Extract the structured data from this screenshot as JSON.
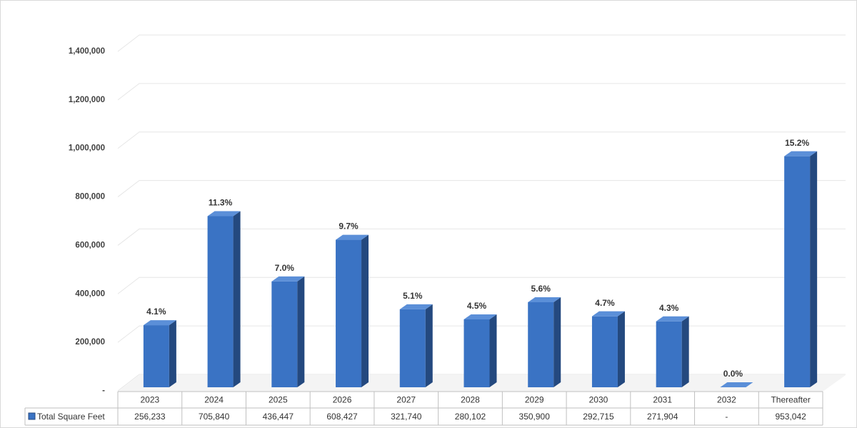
{
  "chart_data": {
    "type": "bar3d",
    "categories": [
      "2023",
      "2024",
      "2025",
      "2026",
      "2027",
      "2028",
      "2029",
      "2030",
      "2031",
      "2032",
      "Thereafter"
    ],
    "series": [
      {
        "name": "Total Square Feet",
        "color": "#3a73c4",
        "values": [
          256233,
          705840,
          436447,
          608427,
          321740,
          280102,
          350900,
          292715,
          271904,
          0,
          953042
        ],
        "value_labels": [
          "256,233",
          "705,840",
          "436,447",
          "608,427",
          "321,740",
          "280,102",
          "350,900",
          "292,715",
          "271,904",
          "-",
          "953,042"
        ]
      }
    ],
    "shares": {
      "values": [
        4.1,
        11.3,
        7.0,
        9.7,
        5.1,
        4.5,
        5.6,
        4.7,
        4.3,
        0.0,
        15.2
      ],
      "value_labels": [
        "4.1%",
        "11.3%",
        "7.0%",
        "9.7%",
        "5.1%",
        "4.5%",
        "5.6%",
        "4.7%",
        "4.3%",
        "0.0%",
        "15.2%"
      ]
    },
    "ylim": [
      0,
      1400000
    ],
    "yticks": [
      {
        "value": 0,
        "label": "-"
      },
      {
        "value": 200000,
        "label": "200,000"
      },
      {
        "value": 400000,
        "label": "400,000"
      },
      {
        "value": 600000,
        "label": "600,000"
      },
      {
        "value": 800000,
        "label": "800,000"
      },
      {
        "value": 1000000,
        "label": "1,000,000"
      },
      {
        "value": 1200000,
        "label": "1,200,000"
      },
      {
        "value": 1400000,
        "label": "1,400,000"
      }
    ],
    "grid": true
  }
}
